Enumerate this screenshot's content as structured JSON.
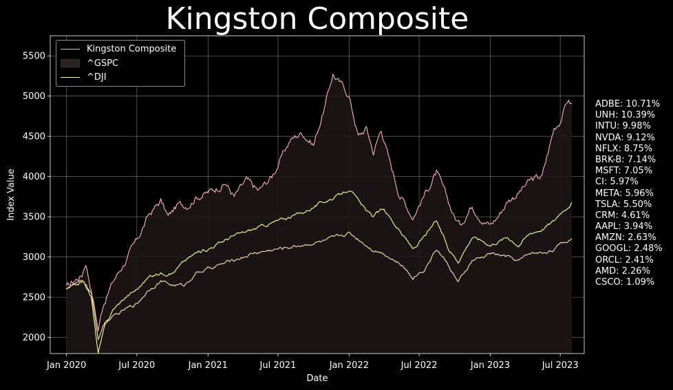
{
  "chart_data": {
    "type": "line",
    "title": "Kingston Composite",
    "xlabel": "Date",
    "ylabel": "Index Value",
    "ylim": [
      1800,
      5750
    ],
    "xlim": [
      "2019-11-20",
      "2023-09-01"
    ],
    "yticks": [
      2000,
      2500,
      3000,
      3500,
      4000,
      4500,
      5000,
      5500
    ],
    "xticks": [
      {
        "date": "2020-01-01",
        "label": "Jan 2020"
      },
      {
        "date": "2020-07-01",
        "label": "Jul 2020"
      },
      {
        "date": "2021-01-01",
        "label": "Jan 2021"
      },
      {
        "date": "2021-07-01",
        "label": "Jul 2021"
      },
      {
        "date": "2022-01-01",
        "label": "Jan 2022"
      },
      {
        "date": "2022-07-01",
        "label": "Jul 2022"
      },
      {
        "date": "2023-01-01",
        "label": "Jan 2023"
      },
      {
        "date": "2023-07-01",
        "label": "Jul 2023"
      }
    ],
    "grid": true,
    "legend_position": "top-left",
    "series": [
      {
        "name": "Kingston Composite",
        "style": "line",
        "color": "#ffb3c1",
        "points": [
          [
            "2020-01-01",
            2620
          ],
          [
            "2020-01-20",
            2700
          ],
          [
            "2020-02-10",
            2780
          ],
          [
            "2020-02-20",
            2940
          ],
          [
            "2020-03-05",
            2600
          ],
          [
            "2020-03-16",
            2320
          ],
          [
            "2020-03-23",
            2100
          ],
          [
            "2020-04-05",
            2420
          ],
          [
            "2020-05-01",
            2700
          ],
          [
            "2020-06-01",
            2950
          ],
          [
            "2020-07-01",
            3200
          ],
          [
            "2020-08-01",
            3520
          ],
          [
            "2020-09-01",
            3700
          ],
          [
            "2020-09-20",
            3500
          ],
          [
            "2020-10-15",
            3650
          ],
          [
            "2020-11-10",
            3650
          ],
          [
            "2020-12-01",
            3750
          ],
          [
            "2021-01-01",
            3800
          ],
          [
            "2021-02-15",
            3920
          ],
          [
            "2021-03-10",
            3750
          ],
          [
            "2021-04-10",
            3950
          ],
          [
            "2021-05-12",
            3820
          ],
          [
            "2021-06-15",
            4000
          ],
          [
            "2021-07-01",
            4150
          ],
          [
            "2021-08-01",
            4450
          ],
          [
            "2021-09-01",
            4550
          ],
          [
            "2021-10-01",
            4400
          ],
          [
            "2021-11-01",
            4900
          ],
          [
            "2021-11-20",
            5280
          ],
          [
            "2021-12-01",
            5200
          ],
          [
            "2021-12-20",
            5100
          ],
          [
            "2022-01-01",
            5000
          ],
          [
            "2022-01-25",
            4500
          ],
          [
            "2022-02-15",
            4600
          ],
          [
            "2022-03-05",
            4300
          ],
          [
            "2022-03-25",
            4600
          ],
          [
            "2022-04-15",
            4200
          ],
          [
            "2022-05-10",
            3800
          ],
          [
            "2022-06-15",
            3500
          ],
          [
            "2022-07-01",
            3650
          ],
          [
            "2022-08-15",
            4050
          ],
          [
            "2022-09-30",
            3500
          ],
          [
            "2022-10-15",
            3400
          ],
          [
            "2022-11-15",
            3650
          ],
          [
            "2022-12-15",
            3450
          ],
          [
            "2023-01-01",
            3400
          ],
          [
            "2023-01-20",
            3500
          ],
          [
            "2023-02-15",
            3700
          ],
          [
            "2023-03-15",
            3800
          ],
          [
            "2023-04-15",
            3950
          ],
          [
            "2023-05-15",
            4000
          ],
          [
            "2023-06-15",
            4600
          ],
          [
            "2023-07-01",
            4700
          ],
          [
            "2023-07-20",
            4950
          ],
          [
            "2023-07-31",
            4900
          ]
        ]
      },
      {
        "name": "^GSPC",
        "style": "area",
        "color": "#1a1414",
        "line_color": "#ffe4b5",
        "points": [
          [
            "2020-01-01",
            2620
          ],
          [
            "2020-02-15",
            2700
          ],
          [
            "2020-03-05",
            2550
          ],
          [
            "2020-03-23",
            1990
          ],
          [
            "2020-04-10",
            2200
          ],
          [
            "2020-05-01",
            2250
          ],
          [
            "2020-06-01",
            2350
          ],
          [
            "2020-07-01",
            2420
          ],
          [
            "2020-08-01",
            2600
          ],
          [
            "2020-09-01",
            2700
          ],
          [
            "2020-10-01",
            2650
          ],
          [
            "2020-11-01",
            2650
          ],
          [
            "2020-12-01",
            2800
          ],
          [
            "2021-01-01",
            2850
          ],
          [
            "2021-03-01",
            2950
          ],
          [
            "2021-05-01",
            3050
          ],
          [
            "2021-07-01",
            3100
          ],
          [
            "2021-09-01",
            3150
          ],
          [
            "2021-11-01",
            3200
          ],
          [
            "2022-01-01",
            3300
          ],
          [
            "2022-02-01",
            3200
          ],
          [
            "2022-03-01",
            3100
          ],
          [
            "2022-04-01",
            3050
          ],
          [
            "2022-05-15",
            2900
          ],
          [
            "2022-06-15",
            2750
          ],
          [
            "2022-07-15",
            2850
          ],
          [
            "2022-08-15",
            3100
          ],
          [
            "2022-09-15",
            2900
          ],
          [
            "2022-10-10",
            2680
          ],
          [
            "2022-11-15",
            2950
          ],
          [
            "2022-12-15",
            3000
          ],
          [
            "2023-01-01",
            3050
          ],
          [
            "2023-02-15",
            3000
          ],
          [
            "2023-03-15",
            2950
          ],
          [
            "2023-04-15",
            3050
          ],
          [
            "2023-05-15",
            3050
          ],
          [
            "2023-06-15",
            3100
          ],
          [
            "2023-07-01",
            3150
          ],
          [
            "2023-07-31",
            3230
          ]
        ]
      },
      {
        "name": "^DJI",
        "style": "line",
        "color": "#ffffa0",
        "points": [
          [
            "2020-01-01",
            2600
          ],
          [
            "2020-02-15",
            2700
          ],
          [
            "2020-03-05",
            2500
          ],
          [
            "2020-03-23",
            1800
          ],
          [
            "2020-04-10",
            2150
          ],
          [
            "2020-05-01",
            2350
          ],
          [
            "2020-06-01",
            2500
          ],
          [
            "2020-07-01",
            2600
          ],
          [
            "2020-08-01",
            2750
          ],
          [
            "2020-09-01",
            2800
          ],
          [
            "2020-10-01",
            2800
          ],
          [
            "2020-11-01",
            2950
          ],
          [
            "2020-12-01",
            3050
          ],
          [
            "2021-01-01",
            3100
          ],
          [
            "2021-03-01",
            3250
          ],
          [
            "2021-05-01",
            3350
          ],
          [
            "2021-07-01",
            3450
          ],
          [
            "2021-09-01",
            3550
          ],
          [
            "2021-11-01",
            3700
          ],
          [
            "2021-12-01",
            3750
          ],
          [
            "2022-01-01",
            3850
          ],
          [
            "2022-02-01",
            3650
          ],
          [
            "2022-03-01",
            3500
          ],
          [
            "2022-04-01",
            3600
          ],
          [
            "2022-05-15",
            3300
          ],
          [
            "2022-06-15",
            3100
          ],
          [
            "2022-07-15",
            3250
          ],
          [
            "2022-08-15",
            3450
          ],
          [
            "2022-09-15",
            3100
          ],
          [
            "2022-10-10",
            2950
          ],
          [
            "2022-11-15",
            3250
          ],
          [
            "2022-12-15",
            3200
          ],
          [
            "2023-01-01",
            3150
          ],
          [
            "2023-02-15",
            3250
          ],
          [
            "2023-03-15",
            3150
          ],
          [
            "2023-04-15",
            3300
          ],
          [
            "2023-05-15",
            3350
          ],
          [
            "2023-06-15",
            3450
          ],
          [
            "2023-07-01",
            3550
          ],
          [
            "2023-07-31",
            3680
          ]
        ]
      }
    ],
    "annotations": [
      "ADBE: 10.71%",
      "UNH: 10.39%",
      "INTU: 9.98%",
      "NVDA: 9.12%",
      "NFLX: 8.75%",
      "BRK-B: 7.14%",
      "MSFT: 7.05%",
      "CI: 5.97%",
      "META: 5.96%",
      "TSLA: 5.50%",
      "CRM: 4.61%",
      "AAPL: 3.94%",
      "AMZN: 2.63%",
      "GOOGL: 2.48%",
      "ORCL: 2.41%",
      "AMD: 2.26%",
      "CSCO: 1.09%"
    ]
  }
}
